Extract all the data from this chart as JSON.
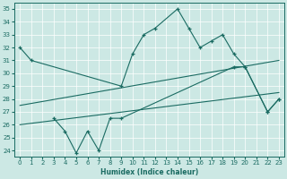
{
  "xlabel": "Humidex (Indice chaleur)",
  "xlim": [
    -0.5,
    23.5
  ],
  "ylim": [
    23.5,
    35.5
  ],
  "yticks": [
    24,
    25,
    26,
    27,
    28,
    29,
    30,
    31,
    32,
    33,
    34,
    35
  ],
  "xticks": [
    0,
    1,
    2,
    3,
    4,
    5,
    6,
    7,
    8,
    9,
    10,
    11,
    12,
    13,
    14,
    15,
    16,
    17,
    18,
    19,
    20,
    21,
    22,
    23
  ],
  "bg_color": "#cce8e4",
  "line_color": "#1a6b62",
  "line1_x": [
    0,
    1,
    9,
    10,
    11,
    12,
    14,
    15,
    16,
    17,
    18,
    19,
    20,
    22,
    23
  ],
  "line1_y": [
    32.0,
    31.0,
    29.0,
    31.5,
    33.0,
    33.5,
    35.0,
    33.5,
    32.0,
    32.5,
    33.0,
    31.5,
    30.5,
    27.0,
    28.0
  ],
  "line2_x": [
    3,
    4,
    5,
    6,
    7,
    8,
    9,
    19,
    20,
    22,
    23
  ],
  "line2_y": [
    26.5,
    25.5,
    23.8,
    25.5,
    24.0,
    26.5,
    26.5,
    30.5,
    30.5,
    27.0,
    28.0
  ],
  "trend1_x": [
    0,
    23
  ],
  "trend1_y": [
    27.5,
    31.0
  ],
  "trend2_x": [
    0,
    23
  ],
  "trend2_y": [
    26.0,
    28.5
  ]
}
